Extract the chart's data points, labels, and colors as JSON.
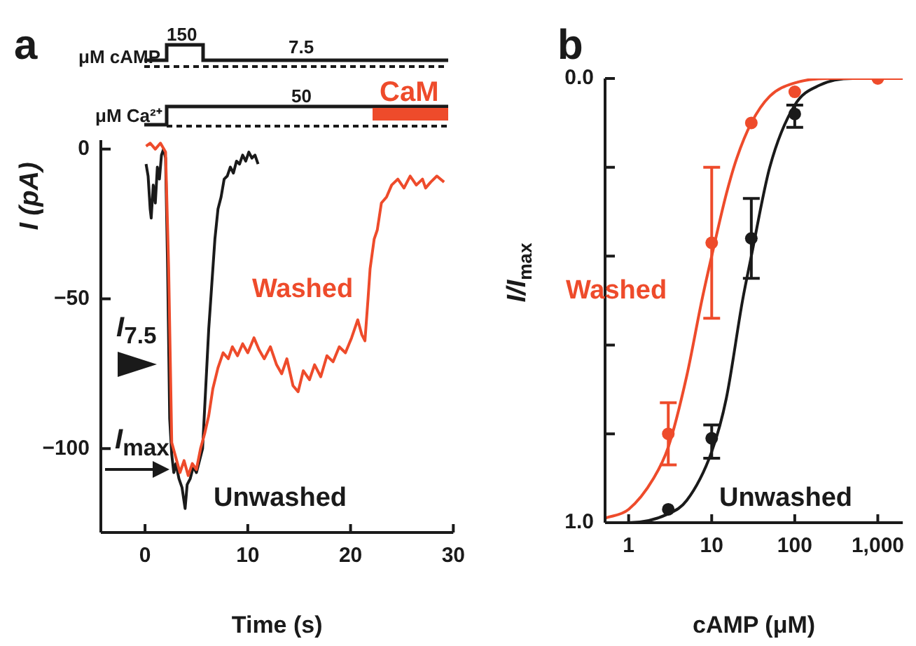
{
  "chart_data": [
    {
      "type": "line",
      "title": "a",
      "xlabel": "Time (s)",
      "ylabel": "I (pA)",
      "xlim": [
        -4.3,
        30
      ],
      "xticks": [
        0,
        10,
        20,
        30
      ],
      "ylim": [
        -128,
        3
      ],
      "yticks": [
        {
          "value": 0,
          "label": "0"
        },
        {
          "value": -50,
          "label": "−50"
        },
        {
          "value": -100,
          "label": "−100"
        }
      ],
      "grid": false,
      "legend": false,
      "line_style": "solid",
      "series": [
        {
          "name": "Washed",
          "color": "#ee4b2b",
          "x": [
            0.1,
            0.5,
            1.0,
            1.5,
            2.0,
            2.3,
            2.6,
            3.0,
            3.4,
            3.8,
            4.2,
            4.6,
            5.0,
            5.4,
            5.8,
            6.2,
            6.6,
            7.1,
            7.6,
            8.1,
            8.5,
            9.0,
            9.5,
            10.0,
            10.6,
            11.1,
            11.6,
            12.2,
            12.8,
            13.3,
            13.8,
            14.4,
            14.9,
            15.4,
            16.0,
            16.5,
            17.1,
            17.7,
            18.3,
            18.9,
            19.5,
            20.1,
            20.7,
            21.1,
            21.4,
            21.7,
            21.9,
            22.3,
            22.6,
            23.0,
            23.5,
            24.0,
            24.6,
            25.2,
            25.8,
            26.4,
            27.0,
            27.3,
            27.8,
            28.4,
            29.1
          ],
          "values": [
            1,
            2,
            0,
            2,
            -1,
            -40,
            -98,
            -103,
            -108,
            -104,
            -109,
            -105,
            -107,
            -100,
            -95,
            -89,
            -80,
            -73,
            -68,
            -70,
            -66,
            -69,
            -65,
            -68,
            -63,
            -67,
            -70,
            -66,
            -72,
            -75,
            -70,
            -79,
            -81,
            -74,
            -77,
            -72,
            -76,
            -69,
            -71,
            -66,
            -68,
            -63,
            -57,
            -62,
            -64,
            -50,
            -40,
            -30,
            -27,
            -18,
            -16,
            -12,
            -10,
            -13,
            -9,
            -12,
            -10,
            -13,
            -11,
            -9,
            -11
          ]
        },
        {
          "name": "Unwashed",
          "color": "#1a1a1a",
          "x": [
            0.1,
            0.3,
            0.5,
            0.6,
            0.8,
            1.0,
            1.2,
            1.4,
            1.6,
            1.8,
            2.0,
            2.2,
            2.4,
            2.6,
            2.8,
            3.0,
            3.3,
            3.6,
            3.9,
            4.1,
            4.4,
            4.7,
            5.0,
            5.3,
            5.6,
            5.9,
            6.2,
            6.5,
            6.8,
            7.1,
            7.4,
            7.7,
            8.0,
            8.3,
            8.6,
            8.9,
            9.2,
            9.5,
            9.8,
            10.1,
            10.4,
            10.7,
            11.0
          ],
          "values": [
            -5,
            -9,
            -20,
            -23,
            -12,
            -18,
            -6,
            -10,
            -2,
            0,
            -3,
            -40,
            -90,
            -102,
            -108,
            -105,
            -110,
            -113,
            -120,
            -112,
            -110,
            -106,
            -108,
            -104,
            -100,
            -80,
            -60,
            -45,
            -30,
            -20,
            -16,
            -10,
            -9,
            -6,
            -8,
            -4,
            -5,
            -2,
            -4,
            -1,
            -3,
            -2,
            -5
          ]
        }
      ],
      "annotations": [
        "μM cAMP",
        "150",
        "7.5",
        "μM Ca²⁺",
        "50",
        "CaM",
        "I$_{7.5}$",
        "I$_{max}$"
      ]
    },
    {
      "type": "scatter",
      "title": "b",
      "xlabel": "cAMP (μM)",
      "ylabel": "I/I$_{max}$",
      "log": "x",
      "xlim": [
        0.52,
        2000
      ],
      "xticks": [
        1,
        10,
        100,
        {
          "value": 1000,
          "label": "1,000"
        }
      ],
      "ylim": [
        1,
        0
      ],
      "yticks": [
        {
          "value": 0,
          "label": "0.0"
        },
        {
          "value": 0.2,
          "label": null
        },
        {
          "value": 0.4,
          "label": null
        },
        {
          "value": 0.6,
          "label": null
        },
        {
          "value": 0.8,
          "label": null
        },
        {
          "value": 1,
          "label": "1.0"
        }
      ],
      "grid": false,
      "legend": false,
      "marker": "circle",
      "series": [
        {
          "type": "line",
          "marker": "none",
          "color": "#ee4b2b",
          "x": [
            0.52,
            1,
            2,
            3,
            5,
            7.6,
            10,
            15,
            20,
            30,
            50,
            100,
            300,
            2000
          ],
          "values": [
            0.99,
            0.97,
            0.9,
            0.83,
            0.67,
            0.5,
            0.4,
            0.26,
            0.18,
            0.1,
            0.04,
            0.01,
            0,
            0
          ]
        },
        {
          "type": "line",
          "marker": "none",
          "color": "#1a1a1a",
          "x": [
            0.52,
            1,
            3,
            5,
            10,
            15,
            23.5,
            30,
            50,
            100,
            200,
            500,
            2000
          ],
          "values": [
            1,
            1,
            0.98,
            0.95,
            0.84,
            0.72,
            0.5,
            0.4,
            0.2,
            0.06,
            0.015,
            0,
            0
          ]
        },
        {
          "name": "Washed",
          "color": "#ee4b2b",
          "x": [
            3,
            10,
            30,
            100,
            1000
          ],
          "values": [
            0.8,
            0.37,
            0.1,
            0.03,
            0
          ],
          "errors": [
            [
              0.73,
              0.87
            ],
            [
              0.2,
              0.54
            ],
            null,
            null,
            null
          ]
        },
        {
          "name": "Unwashed",
          "color": "#1a1a1a",
          "x": [
            3,
            10,
            30,
            100
          ],
          "values": [
            0.97,
            0.81,
            0.36,
            0.08
          ],
          "errors": [
            null,
            [
              0.78,
              0.855
            ],
            [
              0.27,
              0.45
            ],
            [
              0.06,
              0.11
            ]
          ]
        }
      ]
    }
  ]
}
